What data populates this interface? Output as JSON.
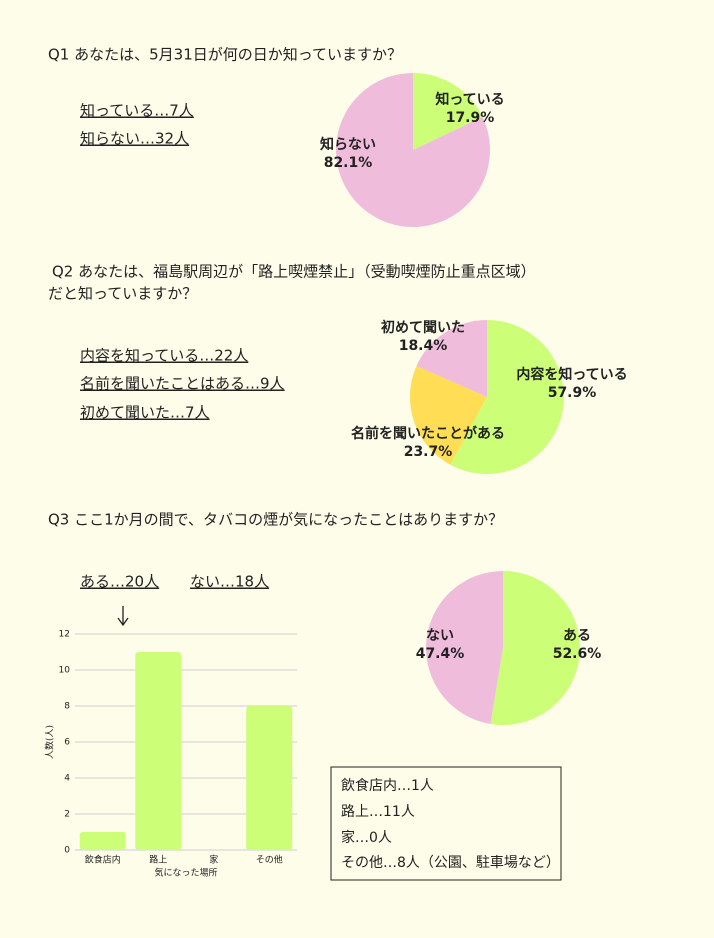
{
  "q1": {
    "question": [
      "Q1 あなたは、5月31日が何の日か知っていますか？"
    ],
    "answers": [
      "知っている…7人",
      "知らない…32人"
    ]
  },
  "q2": {
    "question": [
      "Q2 あなたは、福島駅周辺が「路上喫煙禁止」（受動喫煙防止重点区域）",
      "だと知っていますか？"
    ],
    "answers": [
      "内容を知っている…22人",
      "名前を聞いたことはある…9人",
      "初めて聞いた…7人"
    ]
  },
  "q3": {
    "question": [
      "Q3 ここ1か月の間で、タバコの煙が気になったことはありますか？"
    ],
    "answers": [
      "ある…20人",
      "ない…18人"
    ],
    "note": [
      "飲食店内…1人",
      "路上…11人",
      "家…0人",
      "その他…8人（公園、駐車場など）"
    ]
  },
  "chart_data": [
    {
      "type": "pie",
      "categories": [
        "知っている",
        "知らない"
      ],
      "values": [
        17.9,
        82.1
      ],
      "value_labels": [
        "17.9%",
        "82.1%"
      ],
      "colors": [
        "#ccff77",
        "#f0bcdc"
      ]
    },
    {
      "type": "pie",
      "categories": [
        "内容を知っている",
        "名前を聞いたことがある",
        "初めて聞いた"
      ],
      "values": [
        57.9,
        23.7,
        18.4
      ],
      "value_labels": [
        "57.9%",
        "23.7%",
        "18.4%"
      ],
      "colors": [
        "#ccff77",
        "#ffdd55",
        "#f0bcdc"
      ]
    },
    {
      "type": "pie",
      "categories": [
        "ある",
        "ない"
      ],
      "values": [
        52.6,
        47.4
      ],
      "value_labels": [
        "52.6%",
        "47.4%"
      ],
      "colors": [
        "#ccff77",
        "#f0bcdc"
      ]
    },
    {
      "type": "bar",
      "categories": [
        "飲食店内",
        "路上",
        "家",
        "その他"
      ],
      "values": [
        1,
        11,
        0,
        8
      ],
      "color": "#ccff77",
      "x_label": "気になった場所",
      "y_label": "人数(人)",
      "ylim": [
        0,
        12
      ],
      "yticks": [
        0,
        2,
        4,
        6,
        8,
        10,
        12
      ],
      "grid": true
    }
  ]
}
